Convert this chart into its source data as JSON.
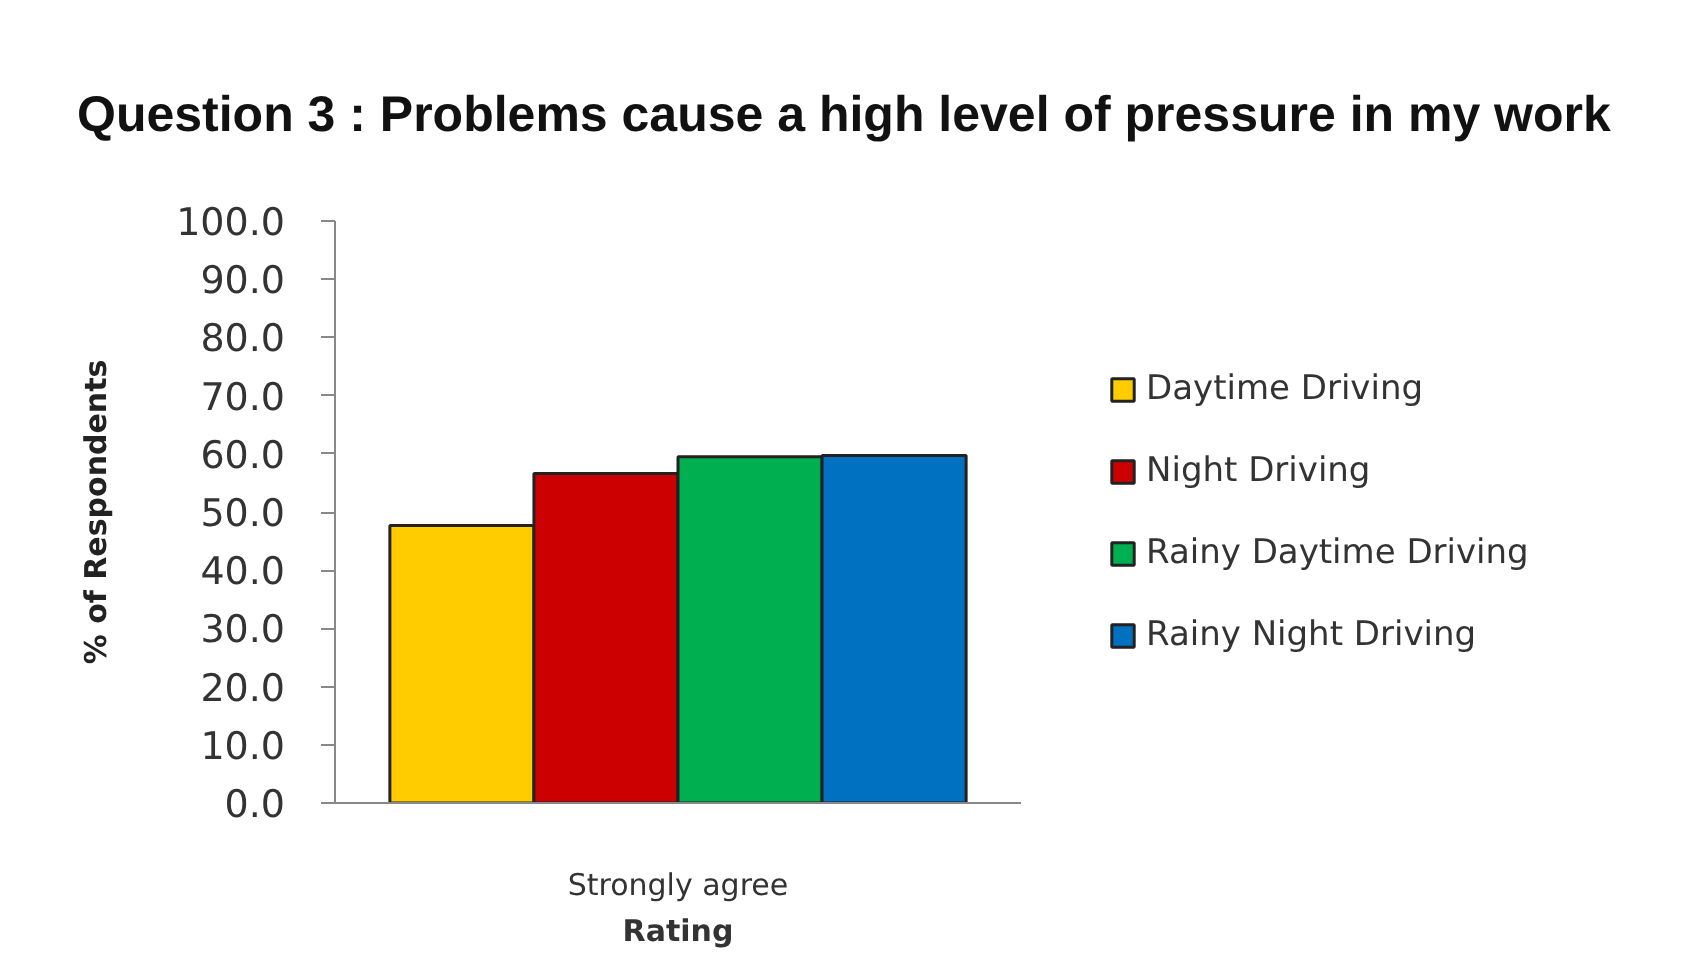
{
  "chart_data": {
    "type": "bar",
    "title": "Question 3 : Problems cause a high level of pressure in my work",
    "xlabel": "Rating",
    "ylabel": "% of Respondents",
    "categories": [
      "Strongly agree"
    ],
    "series": [
      {
        "name": "Daytime Driving",
        "color": "#ffcc00",
        "values": [
          47.7
        ]
      },
      {
        "name": "Night Driving",
        "color": "#cc0000",
        "values": [
          56.6
        ]
      },
      {
        "name": "Rainy Daytime Driving",
        "color": "#00b050",
        "values": [
          59.5
        ]
      },
      {
        "name": "Rainy Night Driving",
        "color": "#0070c0",
        "values": [
          59.7
        ]
      }
    ],
    "ylim": [
      0,
      100
    ],
    "yticks": [
      {
        "value": 0,
        "label": "0.0"
      },
      {
        "value": 10,
        "label": "10.0"
      },
      {
        "value": 20,
        "label": "20.0"
      },
      {
        "value": 30,
        "label": "30.0"
      },
      {
        "value": 40,
        "label": "40.0"
      },
      {
        "value": 50,
        "label": "50.0"
      },
      {
        "value": 60,
        "label": "60.0"
      },
      {
        "value": 70,
        "label": "70.0"
      },
      {
        "value": 80,
        "label": "80.0"
      },
      {
        "value": 90,
        "label": "90.0"
      },
      {
        "value": 100,
        "label": "100.0"
      }
    ],
    "legend": "right"
  }
}
